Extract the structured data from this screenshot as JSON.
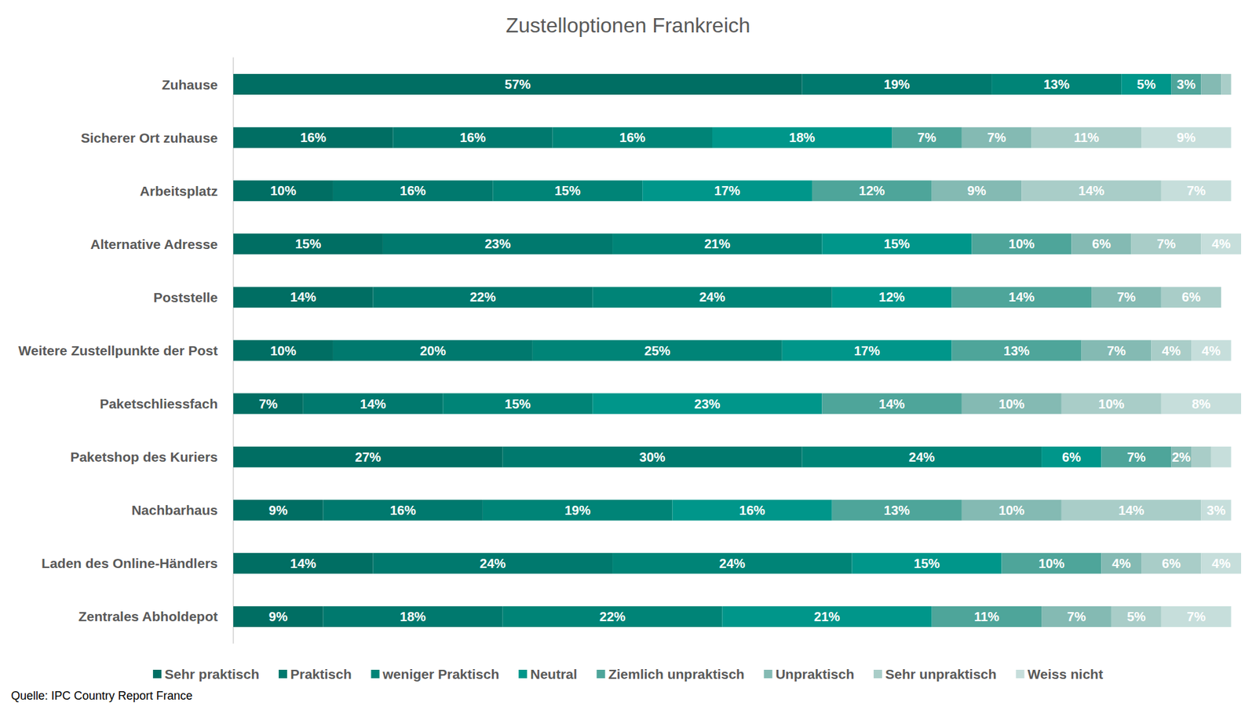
{
  "chart_data": {
    "type": "bar",
    "title": "Zustelloptionen Frankreich",
    "source": "Quelle: IPC Country Report France",
    "orientation": "horizontal",
    "stacked": true,
    "data_labels": true,
    "tick_labels": "y",
    "grid": false,
    "legend": "bottom",
    "xlim": [
      0,
      101
    ],
    "categories": [
      "Zuhause",
      "Sicherer Ort zuhause",
      "Arbeitsplatz",
      "Alternative Adresse",
      "Poststelle",
      "Weitere Zustellpunkte der Post",
      "Paketschliessfach",
      "Paketshop des Kuriers",
      "Nachbarhaus",
      "Laden des Online-Händlers",
      "Zentrales Abholdepot"
    ],
    "series": [
      {
        "name": "Sehr praktisch",
        "color": "#006e63",
        "values": [
          57,
          16,
          10,
          15,
          14,
          10,
          7,
          27,
          9,
          14,
          9
        ],
        "value_labels": [
          "57%",
          "16%",
          "10%",
          "15%",
          "14%",
          "10%",
          "7%",
          "27%",
          "9%",
          "14%",
          "9%"
        ]
      },
      {
        "name": "Praktisch",
        "color": "#00796e",
        "values": [
          19,
          16,
          16,
          23,
          22,
          20,
          14,
          30,
          16,
          24,
          18
        ],
        "value_labels": [
          "19%",
          "16%",
          "16%",
          "23%",
          "22%",
          "20%",
          "14%",
          "30%",
          "16%",
          "24%",
          "18%"
        ]
      },
      {
        "name": "weniger Praktisch",
        "color": "#008477",
        "values": [
          13,
          16,
          15,
          21,
          24,
          25,
          15,
          24,
          19,
          24,
          22
        ],
        "value_labels": [
          "13%",
          "16%",
          "15%",
          "21%",
          "24%",
          "25%",
          "15%",
          "24%",
          "19%",
          "24%",
          "22%"
        ]
      },
      {
        "name": "Neutral",
        "color": "#00968a",
        "values": [
          5,
          18,
          17,
          15,
          12,
          17,
          23,
          6,
          16,
          15,
          21
        ],
        "value_labels": [
          "5%",
          "18%",
          "17%",
          "15%",
          "12%",
          "17%",
          "23%",
          "6%",
          "16%",
          "15%",
          "21%"
        ]
      },
      {
        "name": "Ziemlich unpraktisch",
        "color": "#4ea59a",
        "values": [
          3,
          7,
          12,
          10,
          14,
          13,
          14,
          7,
          13,
          10,
          11
        ],
        "value_labels": [
          "3%",
          "7%",
          "12%",
          "10%",
          "14%",
          "13%",
          "14%",
          "7%",
          "13%",
          "10%",
          "11%"
        ]
      },
      {
        "name": "Unpraktisch",
        "color": "#84bab3",
        "values": [
          2,
          7,
          9,
          6,
          7,
          7,
          10,
          2,
          10,
          4,
          7
        ],
        "value_labels": [
          null,
          "7%",
          "9%",
          "6%",
          "7%",
          "7%",
          "10%",
          "2%",
          "10%",
          "4%",
          "7%"
        ]
      },
      {
        "name": "Sehr unpraktisch",
        "color": "#a9cdc8",
        "values": [
          1,
          11,
          14,
          7,
          6,
          4,
          10,
          2,
          14,
          6,
          5
        ],
        "value_labels": [
          null,
          "11%",
          "14%",
          "7%",
          "6%",
          "4%",
          "10%",
          null,
          "14%",
          "6%",
          "5%"
        ]
      },
      {
        "name": "Weiss nicht",
        "color": "#c6dedb",
        "values": [
          0,
          9,
          7,
          4,
          0,
          4,
          8,
          2,
          3,
          4,
          7
        ],
        "value_labels": [
          null,
          "9%",
          "7%",
          "4%",
          null,
          "4%",
          "8%",
          null,
          "3%",
          "4%",
          "7%"
        ]
      }
    ]
  }
}
